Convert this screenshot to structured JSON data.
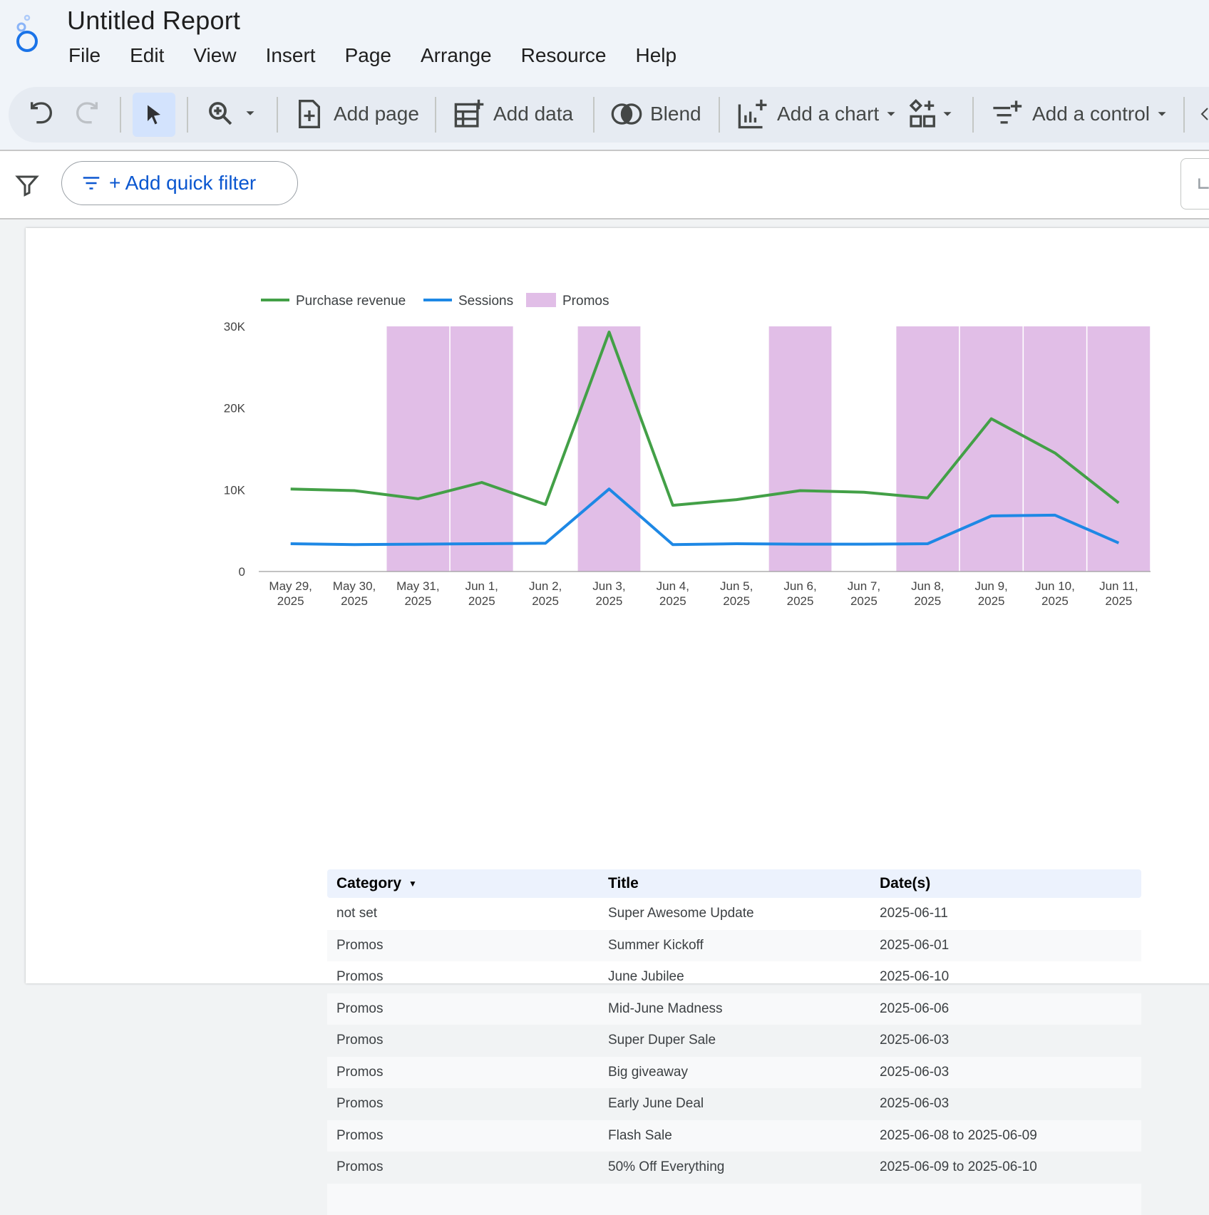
{
  "app": {
    "title": "Untitled Report"
  },
  "menu": [
    "File",
    "Edit",
    "View",
    "Insert",
    "Page",
    "Arrange",
    "Resource",
    "Help"
  ],
  "toolbar": {
    "add_page": "Add page",
    "add_data": "Add data",
    "blend": "Blend",
    "add_chart": "Add a chart",
    "add_control": "Add a control"
  },
  "filter_bar": {
    "quick_filter_label": "+ Add quick filter"
  },
  "colors": {
    "revenue": "#43a047",
    "sessions": "#1e88e5",
    "promo": "#e1bee7",
    "accent": "#0b57d0"
  },
  "chart_data": {
    "type": "line",
    "legend": [
      "Purchase revenue",
      "Sessions",
      "Promos"
    ],
    "categories": [
      [
        "May 29,",
        "2025"
      ],
      [
        "May 30,",
        "2025"
      ],
      [
        "May 31,",
        "2025"
      ],
      [
        "Jun 1,",
        "2025"
      ],
      [
        "Jun 2,",
        "2025"
      ],
      [
        "Jun 3,",
        "2025"
      ],
      [
        "Jun 4,",
        "2025"
      ],
      [
        "Jun 5,",
        "2025"
      ],
      [
        "Jun 6,",
        "2025"
      ],
      [
        "Jun 7,",
        "2025"
      ],
      [
        "Jun 8,",
        "2025"
      ],
      [
        "Jun 9,",
        "2025"
      ],
      [
        "Jun 10,",
        "2025"
      ],
      [
        "Jun 11,",
        "2025"
      ]
    ],
    "y_ticks": [
      "0",
      "10K",
      "20K",
      "30K"
    ],
    "y_tick_values": [
      0,
      10000,
      20000,
      30000
    ],
    "ylim": [
      0,
      30000
    ],
    "series": [
      {
        "name": "Purchase revenue",
        "values": [
          10100,
          9900,
          8900,
          10900,
          8200,
          29300,
          8100,
          8800,
          9900,
          9700,
          9000,
          18700,
          14500,
          8400
        ]
      },
      {
        "name": "Sessions",
        "values": [
          3400,
          3300,
          3350,
          3400,
          3450,
          10100,
          3300,
          3400,
          3350,
          3350,
          3400,
          6800,
          6900,
          3500
        ]
      }
    ],
    "promo_days": [
      2,
      3,
      5,
      8,
      10,
      11,
      12,
      13
    ]
  },
  "table": {
    "columns": [
      "Category",
      "Title",
      "Date(s)"
    ],
    "rows": [
      [
        "not set",
        "Super Awesome Update",
        "2025-06-11"
      ],
      [
        "Promos",
        "Summer Kickoff",
        "2025-06-01"
      ],
      [
        "Promos",
        "June Jubilee",
        "2025-06-10"
      ],
      [
        "Promos",
        "Mid-June Madness",
        "2025-06-06"
      ],
      [
        "Promos",
        "Super Duper Sale",
        "2025-06-03"
      ],
      [
        "Promos",
        "Big giveaway",
        "2025-06-03"
      ],
      [
        "Promos",
        "Early June Deal",
        "2025-06-03"
      ],
      [
        "Promos",
        "Flash Sale",
        "2025-06-08 to 2025-06-09"
      ],
      [
        "Promos",
        "50% Off Everything",
        "2025-06-09 to 2025-06-10"
      ]
    ]
  }
}
